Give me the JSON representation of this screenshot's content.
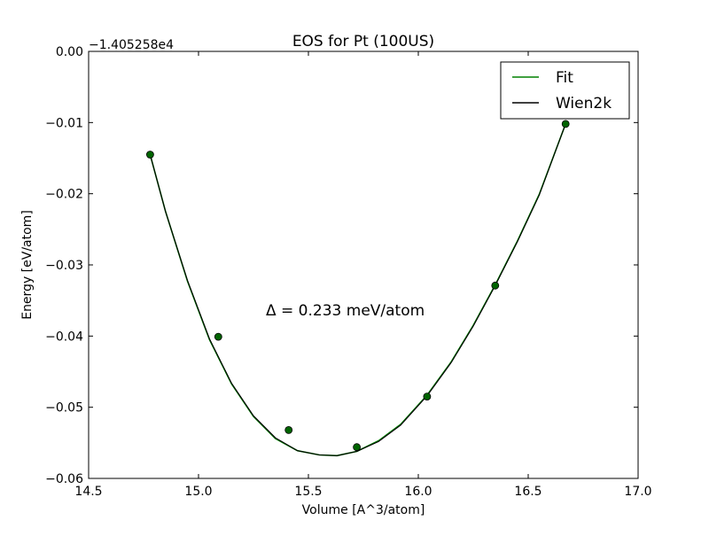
{
  "chart_data": {
    "type": "line",
    "title": "EOS for Pt (100US)",
    "xlabel": "Volume [A^3/atom]",
    "ylabel": "Energy [eV/atom]",
    "y_offset_label": "−1.405258e4",
    "annotation": "Δ = 0.233 meV/atom",
    "xlim": [
      14.5,
      17.0
    ],
    "ylim": [
      -0.06,
      0.0
    ],
    "x_ticks": [
      {
        "value": 14.5,
        "label": "14.5"
      },
      {
        "value": 15.0,
        "label": "15.0"
      },
      {
        "value": 15.5,
        "label": "15.5"
      },
      {
        "value": 16.0,
        "label": "16.0"
      },
      {
        "value": 16.5,
        "label": "16.5"
      },
      {
        "value": 17.0,
        "label": "17.0"
      }
    ],
    "y_ticks": [
      {
        "value": 0.0,
        "label": "0.00"
      },
      {
        "value": -0.01,
        "label": "−0.01"
      },
      {
        "value": -0.02,
        "label": "−0.02"
      },
      {
        "value": -0.03,
        "label": "−0.03"
      },
      {
        "value": -0.04,
        "label": "−0.04"
      },
      {
        "value": -0.05,
        "label": "−0.05"
      },
      {
        "value": -0.06,
        "label": "−0.06"
      }
    ],
    "grid": false,
    "legend_position": "top-right",
    "series": [
      {
        "name": "Fit",
        "color": "#008000",
        "style": "line",
        "x": [
          14.78,
          14.85,
          14.95,
          15.05,
          15.15,
          15.25,
          15.35,
          15.45,
          15.55,
          15.63,
          15.72,
          15.82,
          15.92,
          16.04,
          16.15,
          16.25,
          16.35,
          16.45,
          16.55,
          16.67
        ],
        "y": [
          -0.0145,
          -0.0225,
          -0.0323,
          -0.0405,
          -0.0467,
          -0.0513,
          -0.0544,
          -0.0561,
          -0.0567,
          -0.0568,
          -0.0562,
          -0.0547,
          -0.0524,
          -0.0483,
          -0.0436,
          -0.0385,
          -0.0328,
          -0.0267,
          -0.0201,
          -0.0102
        ]
      },
      {
        "name": "Wien2k",
        "color": "#000000",
        "style": "line",
        "x": [
          14.78,
          14.85,
          14.95,
          15.05,
          15.15,
          15.25,
          15.35,
          15.45,
          15.55,
          15.63,
          15.72,
          15.82,
          15.92,
          16.04,
          16.15,
          16.25,
          16.35,
          16.45,
          16.55,
          16.67
        ],
        "y": [
          -0.0145,
          -0.0225,
          -0.0322,
          -0.0404,
          -0.0466,
          -0.0512,
          -0.0543,
          -0.0561,
          -0.0567,
          -0.0568,
          -0.0562,
          -0.0548,
          -0.0525,
          -0.0484,
          -0.0437,
          -0.0386,
          -0.0329,
          -0.0268,
          -0.0202,
          -0.0102
        ]
      }
    ],
    "points": {
      "color": "#006400",
      "x": [
        14.78,
        15.09,
        15.41,
        15.72,
        16.04,
        16.35,
        16.67
      ],
      "y": [
        -0.0145,
        -0.0401,
        -0.0532,
        -0.0556,
        -0.0485,
        -0.0329,
        -0.0102
      ]
    }
  }
}
